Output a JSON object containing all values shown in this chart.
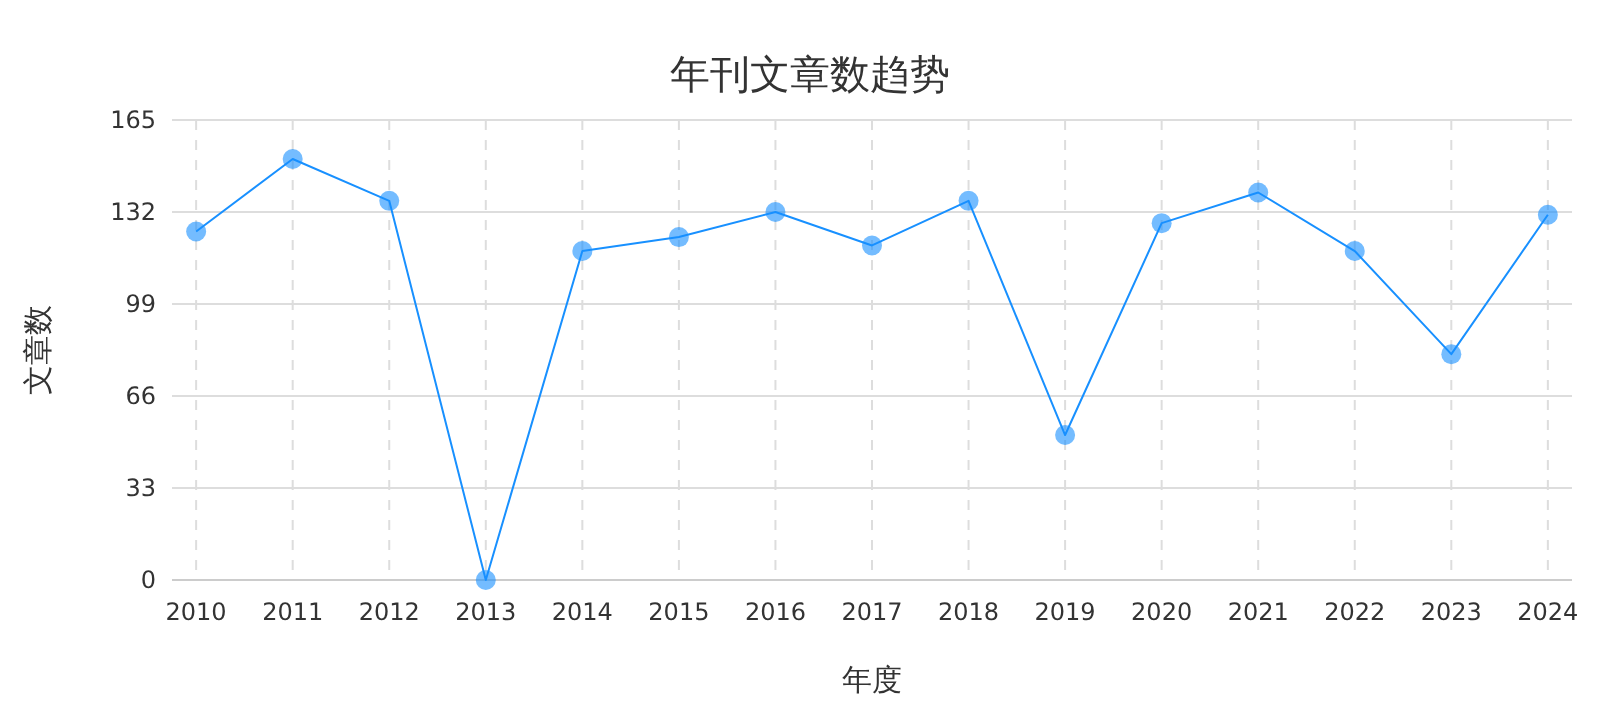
{
  "chart_data": {
    "type": "line",
    "title": "年刊文章数趋势",
    "xlabel": "年度",
    "ylabel": "文章数",
    "categories": [
      "2010",
      "2011",
      "2012",
      "2013",
      "2014",
      "2015",
      "2016",
      "2017",
      "2018",
      "2019",
      "2020",
      "2021",
      "2022",
      "2023",
      "2024"
    ],
    "series": [
      {
        "color": "#1890ff",
        "values": [
          125,
          151,
          136,
          0,
          118,
          123,
          132,
          120,
          136,
          52,
          128,
          139,
          118,
          81,
          131
        ]
      }
    ],
    "ylim": [
      0,
      165
    ],
    "yticks": [
      0,
      33,
      66,
      99,
      132,
      165
    ],
    "grid": true,
    "marker": "circle",
    "line_style": "solid"
  }
}
